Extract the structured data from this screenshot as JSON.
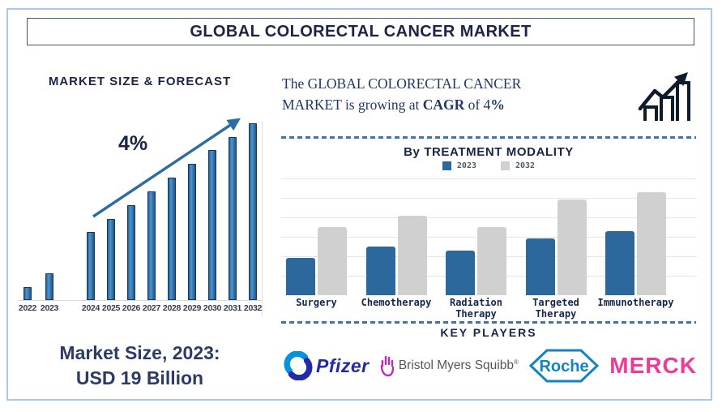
{
  "title": "GLOBAL COLORECTAL CANCER MARKET",
  "colors": {
    "navy": "#1b2447",
    "forecast_bar_blue": "#2e6da4",
    "trend_arrow_blue": "#2e6da4",
    "modality_blue": "#2d689c",
    "modality_gray": "#d0d0d0",
    "dashed_line_blue": "#3e74ad",
    "outer_border_blue": "#a9c9e8",
    "pfizer_blue": "#2329a8",
    "pfizer_light_blue": "#0093e0",
    "bms_purple": "#be2bbb",
    "bms_text_gray": "#54565b",
    "roche_blue": "#1482c5",
    "merck_pink": "#eb3c96"
  },
  "left_panel": {
    "heading": "MARKET SIZE & FORECAST",
    "growth_annotation": "4%",
    "market_size_line1": "Market Size, 2023:",
    "market_size_line2": "USD 19 Billion"
  },
  "right_panel": {
    "intro": {
      "text_start": "The GLOBAL COLORECTAL CANCER MARKET is growing at ",
      "bold_cagr": "CAGR",
      "text_mid": " of 4",
      "bold_percent": "%"
    },
    "treatment": {
      "heading": "By TREATMENT MODALITY"
    },
    "key_players": {
      "heading": "KEY PLAYERS",
      "companies": {
        "pfizer": "Pfizer",
        "bms": "Bristol Myers Squibb",
        "bms_reg": "®",
        "roche": "Roche",
        "merck": "MERCK"
      }
    }
  },
  "chart_data": [
    {
      "type": "bar",
      "title": "MARKET SIZE & FORECAST",
      "categories": [
        "2022",
        "2023",
        "2024",
        "2025",
        "2026",
        "2027",
        "2028",
        "2029",
        "2030",
        "2031",
        "2032"
      ],
      "values": [
        16,
        33,
        84,
        100,
        117,
        134,
        151,
        168,
        185,
        201,
        218
      ],
      "note": "no y-axis shown; values are relative bar heights (illustrative growth at 4% CAGR, 2023 market = USD 19 Billion)",
      "annotation": "4%",
      "trend_arrow": true,
      "xlabel": "",
      "ylabel": "",
      "grid": false
    },
    {
      "type": "bar",
      "title": "By TREATMENT MODALITY",
      "categories": [
        "Surgery",
        "Chemotherapy",
        "Radiation Therapy",
        "Targeted Therapy",
        "Immunotherapy"
      ],
      "series": [
        {
          "name": "2023",
          "color": "#2d689c",
          "values": [
            19,
            25,
            23,
            29,
            33
          ]
        },
        {
          "name": "2032",
          "color": "#d0d0d0",
          "values": [
            35,
            41,
            35,
            49,
            53
          ]
        }
      ],
      "ylim": [
        0,
        60
      ],
      "grid": true,
      "gridline_step": 10,
      "legend_position": "top",
      "xlabel": "",
      "ylabel": ""
    }
  ]
}
